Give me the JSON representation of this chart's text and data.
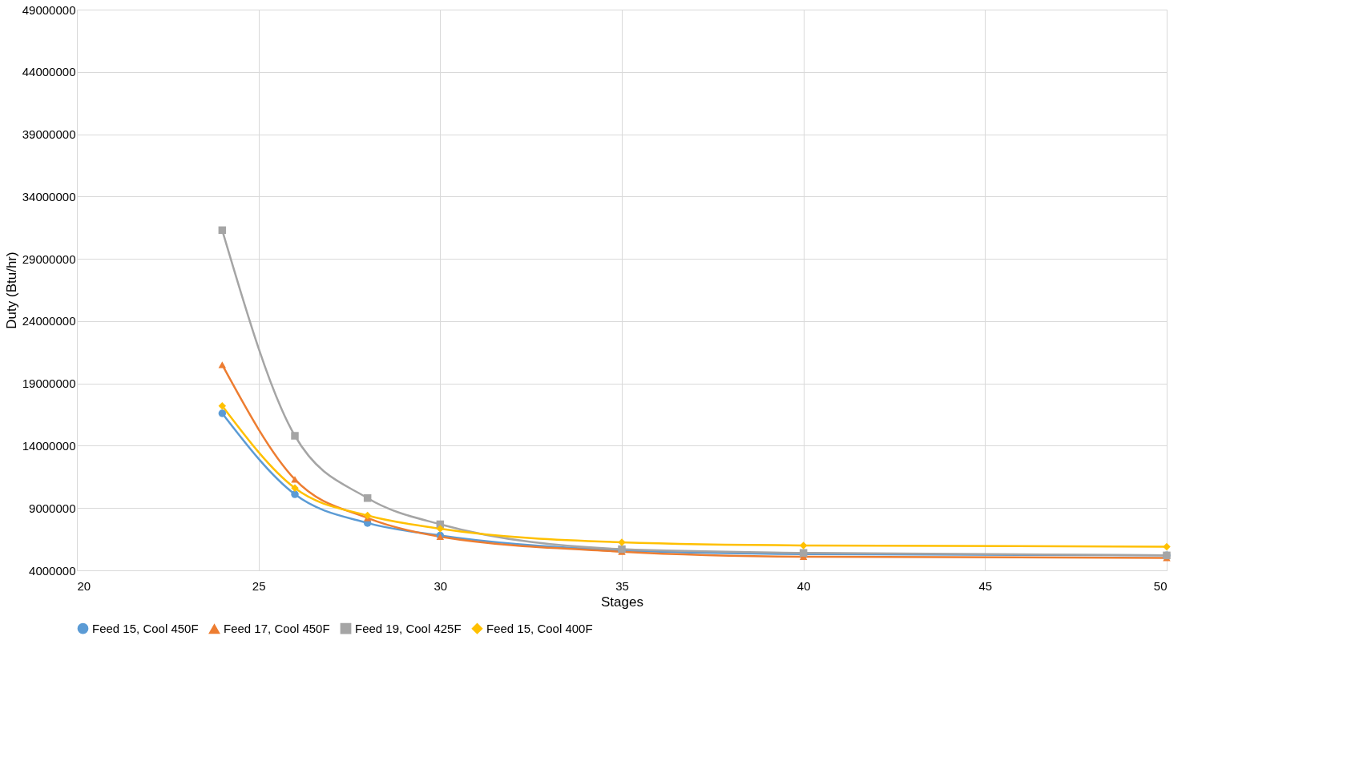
{
  "chart_data": {
    "type": "line",
    "xlabel": "Stages",
    "ylabel": "Duty (Btu/hr)",
    "x": [
      24,
      26,
      28,
      30,
      35,
      40,
      50
    ],
    "series": [
      {
        "name": "Feed 15, Cool 450F",
        "color": "#5b9bd5",
        "marker": "circle",
        "values": [
          16600000,
          10100000,
          7800000,
          6800000,
          5600000,
          5300000,
          5200000
        ]
      },
      {
        "name": "Feed 17, Cool 450F",
        "color": "#ed7d31",
        "marker": "triangle",
        "values": [
          20500000,
          11300000,
          8200000,
          6700000,
          5500000,
          5100000,
          5000000
        ]
      },
      {
        "name": "Feed 19, Cool 425F",
        "color": "#a5a5a5",
        "marker": "square",
        "values": [
          31300000,
          14800000,
          9800000,
          7700000,
          5700000,
          5400000,
          5200000
        ]
      },
      {
        "name": "Feed 15, Cool 400F",
        "color": "#ffc000",
        "marker": "diamond",
        "values": [
          17200000,
          10600000,
          8400000,
          7350000,
          6250000,
          6000000,
          5900000
        ]
      }
    ],
    "xlim": [
      20,
      50
    ],
    "xticks": [
      20,
      25,
      30,
      35,
      40,
      45,
      50
    ],
    "ylim": [
      4000000,
      49000000
    ],
    "yticks": [
      4000000,
      9000000,
      14000000,
      19000000,
      24000000,
      29000000,
      34000000,
      39000000,
      44000000,
      49000000
    ],
    "grid": true,
    "legend": "bottom"
  }
}
